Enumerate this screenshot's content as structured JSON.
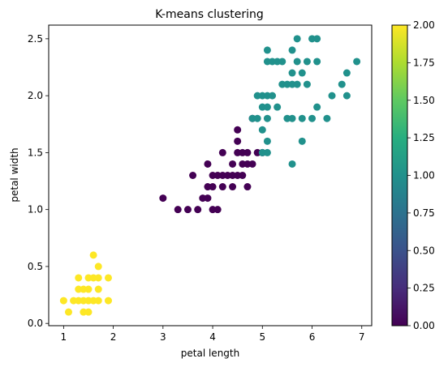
{
  "chart_data": {
    "type": "scatter",
    "title": "K-means clustering",
    "xlabel": "petal length",
    "ylabel": "petal width",
    "xlim": [
      0.7,
      7.2
    ],
    "ylim": [
      -0.02,
      2.62
    ],
    "xticks": [
      1,
      2,
      3,
      4,
      5,
      6,
      7
    ],
    "xtick_labels": [
      "1",
      "2",
      "3",
      "4",
      "5",
      "6",
      "7"
    ],
    "yticks": [
      0.0,
      0.5,
      1.0,
      1.5,
      2.0,
      2.5
    ],
    "ytick_labels": [
      "0.0",
      "0.5",
      "1.0",
      "1.5",
      "2.0",
      "2.5"
    ],
    "grid": false,
    "colorbar": {
      "colormap": "viridis",
      "range": [
        0.0,
        2.0
      ],
      "ticks": [
        0.0,
        0.25,
        0.5,
        0.75,
        1.0,
        1.25,
        1.5,
        1.75,
        2.0
      ],
      "tick_labels": [
        "0.00",
        "0.25",
        "0.50",
        "0.75",
        "1.00",
        "1.25",
        "1.50",
        "1.75",
        "2.00"
      ]
    },
    "cluster_colors": {
      "0": "#440154",
      "1": "#21918c",
      "2": "#fde725"
    },
    "points": [
      {
        "x": 1.0,
        "y": 0.2,
        "cluster": 2
      },
      {
        "x": 1.1,
        "y": 0.1,
        "cluster": 2
      },
      {
        "x": 1.2,
        "y": 0.2,
        "cluster": 2
      },
      {
        "x": 1.3,
        "y": 0.2,
        "cluster": 2
      },
      {
        "x": 1.3,
        "y": 0.3,
        "cluster": 2
      },
      {
        "x": 1.3,
        "y": 0.4,
        "cluster": 2
      },
      {
        "x": 1.4,
        "y": 0.1,
        "cluster": 2
      },
      {
        "x": 1.4,
        "y": 0.2,
        "cluster": 2
      },
      {
        "x": 1.4,
        "y": 0.3,
        "cluster": 2
      },
      {
        "x": 1.5,
        "y": 0.1,
        "cluster": 2
      },
      {
        "x": 1.5,
        "y": 0.2,
        "cluster": 2
      },
      {
        "x": 1.5,
        "y": 0.3,
        "cluster": 2
      },
      {
        "x": 1.5,
        "y": 0.4,
        "cluster": 2
      },
      {
        "x": 1.6,
        "y": 0.2,
        "cluster": 2
      },
      {
        "x": 1.6,
        "y": 0.4,
        "cluster": 2
      },
      {
        "x": 1.6,
        "y": 0.6,
        "cluster": 2
      },
      {
        "x": 1.7,
        "y": 0.2,
        "cluster": 2
      },
      {
        "x": 1.7,
        "y": 0.3,
        "cluster": 2
      },
      {
        "x": 1.7,
        "y": 0.4,
        "cluster": 2
      },
      {
        "x": 1.7,
        "y": 0.5,
        "cluster": 2
      },
      {
        "x": 1.9,
        "y": 0.2,
        "cluster": 2
      },
      {
        "x": 1.9,
        "y": 0.4,
        "cluster": 2
      },
      {
        "x": 3.0,
        "y": 1.1,
        "cluster": 0
      },
      {
        "x": 3.3,
        "y": 1.0,
        "cluster": 0
      },
      {
        "x": 3.5,
        "y": 1.0,
        "cluster": 0
      },
      {
        "x": 3.6,
        "y": 1.3,
        "cluster": 0
      },
      {
        "x": 3.7,
        "y": 1.0,
        "cluster": 0
      },
      {
        "x": 3.8,
        "y": 1.1,
        "cluster": 0
      },
      {
        "x": 3.9,
        "y": 1.1,
        "cluster": 0
      },
      {
        "x": 3.9,
        "y": 1.2,
        "cluster": 0
      },
      {
        "x": 3.9,
        "y": 1.4,
        "cluster": 0
      },
      {
        "x": 4.0,
        "y": 1.0,
        "cluster": 0
      },
      {
        "x": 4.0,
        "y": 1.2,
        "cluster": 0
      },
      {
        "x": 4.0,
        "y": 1.3,
        "cluster": 0
      },
      {
        "x": 4.1,
        "y": 1.0,
        "cluster": 0
      },
      {
        "x": 4.1,
        "y": 1.3,
        "cluster": 0
      },
      {
        "x": 4.2,
        "y": 1.2,
        "cluster": 0
      },
      {
        "x": 4.2,
        "y": 1.3,
        "cluster": 0
      },
      {
        "x": 4.2,
        "y": 1.5,
        "cluster": 0
      },
      {
        "x": 4.3,
        "y": 1.3,
        "cluster": 0
      },
      {
        "x": 4.4,
        "y": 1.2,
        "cluster": 0
      },
      {
        "x": 4.4,
        "y": 1.3,
        "cluster": 0
      },
      {
        "x": 4.4,
        "y": 1.4,
        "cluster": 0
      },
      {
        "x": 4.5,
        "y": 1.3,
        "cluster": 0
      },
      {
        "x": 4.5,
        "y": 1.5,
        "cluster": 0
      },
      {
        "x": 4.5,
        "y": 1.6,
        "cluster": 0
      },
      {
        "x": 4.5,
        "y": 1.7,
        "cluster": 0
      },
      {
        "x": 4.6,
        "y": 1.3,
        "cluster": 0
      },
      {
        "x": 4.6,
        "y": 1.4,
        "cluster": 0
      },
      {
        "x": 4.6,
        "y": 1.5,
        "cluster": 0
      },
      {
        "x": 4.7,
        "y": 1.2,
        "cluster": 0
      },
      {
        "x": 4.7,
        "y": 1.4,
        "cluster": 0
      },
      {
        "x": 4.7,
        "y": 1.5,
        "cluster": 0
      },
      {
        "x": 4.8,
        "y": 1.4,
        "cluster": 0
      },
      {
        "x": 4.8,
        "y": 1.8,
        "cluster": 0
      },
      {
        "x": 4.9,
        "y": 1.5,
        "cluster": 0
      },
      {
        "x": 5.0,
        "y": 1.5,
        "cluster": 0
      },
      {
        "x": 4.8,
        "y": 1.8,
        "cluster": 1
      },
      {
        "x": 4.9,
        "y": 1.8,
        "cluster": 1
      },
      {
        "x": 4.9,
        "y": 2.0,
        "cluster": 1
      },
      {
        "x": 5.0,
        "y": 1.5,
        "cluster": 1
      },
      {
        "x": 5.0,
        "y": 1.7,
        "cluster": 1
      },
      {
        "x": 5.0,
        "y": 1.9,
        "cluster": 1
      },
      {
        "x": 5.0,
        "y": 2.0,
        "cluster": 1
      },
      {
        "x": 5.1,
        "y": 1.5,
        "cluster": 1
      },
      {
        "x": 5.1,
        "y": 1.6,
        "cluster": 1
      },
      {
        "x": 5.1,
        "y": 1.8,
        "cluster": 1
      },
      {
        "x": 5.1,
        "y": 1.9,
        "cluster": 1
      },
      {
        "x": 5.1,
        "y": 2.0,
        "cluster": 1
      },
      {
        "x": 5.1,
        "y": 2.3,
        "cluster": 1
      },
      {
        "x": 5.1,
        "y": 2.4,
        "cluster": 1
      },
      {
        "x": 5.2,
        "y": 2.0,
        "cluster": 1
      },
      {
        "x": 5.2,
        "y": 2.3,
        "cluster": 1
      },
      {
        "x": 5.3,
        "y": 1.9,
        "cluster": 1
      },
      {
        "x": 5.3,
        "y": 2.3,
        "cluster": 1
      },
      {
        "x": 5.4,
        "y": 2.1,
        "cluster": 1
      },
      {
        "x": 5.4,
        "y": 2.3,
        "cluster": 1
      },
      {
        "x": 5.5,
        "y": 1.8,
        "cluster": 1
      },
      {
        "x": 5.5,
        "y": 2.1,
        "cluster": 1
      },
      {
        "x": 5.6,
        "y": 1.4,
        "cluster": 1
      },
      {
        "x": 5.6,
        "y": 1.8,
        "cluster": 1
      },
      {
        "x": 5.6,
        "y": 2.1,
        "cluster": 1
      },
      {
        "x": 5.6,
        "y": 2.2,
        "cluster": 1
      },
      {
        "x": 5.6,
        "y": 2.4,
        "cluster": 1
      },
      {
        "x": 5.7,
        "y": 2.1,
        "cluster": 1
      },
      {
        "x": 5.7,
        "y": 2.3,
        "cluster": 1
      },
      {
        "x": 5.7,
        "y": 2.5,
        "cluster": 1
      },
      {
        "x": 5.8,
        "y": 1.6,
        "cluster": 1
      },
      {
        "x": 5.8,
        "y": 1.8,
        "cluster": 1
      },
      {
        "x": 5.8,
        "y": 2.2,
        "cluster": 1
      },
      {
        "x": 5.9,
        "y": 2.1,
        "cluster": 1
      },
      {
        "x": 5.9,
        "y": 2.3,
        "cluster": 1
      },
      {
        "x": 6.0,
        "y": 1.8,
        "cluster": 1
      },
      {
        "x": 6.0,
        "y": 2.5,
        "cluster": 1
      },
      {
        "x": 6.1,
        "y": 1.9,
        "cluster": 1
      },
      {
        "x": 6.1,
        "y": 2.3,
        "cluster": 1
      },
      {
        "x": 6.1,
        "y": 2.5,
        "cluster": 1
      },
      {
        "x": 6.3,
        "y": 1.8,
        "cluster": 1
      },
      {
        "x": 6.4,
        "y": 2.0,
        "cluster": 1
      },
      {
        "x": 6.6,
        "y": 2.1,
        "cluster": 1
      },
      {
        "x": 6.7,
        "y": 2.0,
        "cluster": 1
      },
      {
        "x": 6.7,
        "y": 2.2,
        "cluster": 1
      },
      {
        "x": 6.9,
        "y": 2.3,
        "cluster": 1
      }
    ]
  }
}
